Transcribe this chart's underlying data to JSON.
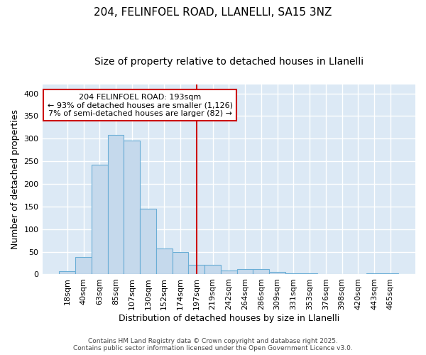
{
  "title1": "204, FELINFOEL ROAD, LLANELLI, SA15 3NZ",
  "title2": "Size of property relative to detached houses in Llanelli",
  "xlabel": "Distribution of detached houses by size in Llanelli",
  "ylabel": "Number of detached properties",
  "bar_labels": [
    "18sqm",
    "40sqm",
    "63sqm",
    "85sqm",
    "107sqm",
    "130sqm",
    "152sqm",
    "174sqm",
    "197sqm",
    "219sqm",
    "242sqm",
    "264sqm",
    "286sqm",
    "309sqm",
    "331sqm",
    "353sqm",
    "376sqm",
    "398sqm",
    "420sqm",
    "443sqm",
    "465sqm"
  ],
  "bar_values": [
    7,
    38,
    243,
    308,
    296,
    145,
    57,
    50,
    21,
    21,
    9,
    12,
    12,
    5,
    3,
    3,
    1,
    0,
    1,
    3,
    3
  ],
  "bar_color": "#c5d9ec",
  "bar_edge_color": "#6aaed6",
  "vline_x_index": 8,
  "vline_color": "#cc0000",
  "annotation_text": "204 FELINFOEL ROAD: 193sqm\n← 93% of detached houses are smaller (1,126)\n7% of semi-detached houses are larger (82) →",
  "annotation_box_facecolor": "#ffffff",
  "annotation_box_edgecolor": "#cc0000",
  "plot_bg_color": "#dce9f5",
  "fig_bg_color": "#ffffff",
  "grid_color": "#ffffff",
  "ylim": [
    0,
    420
  ],
  "yticks": [
    0,
    50,
    100,
    150,
    200,
    250,
    300,
    350,
    400
  ],
  "title1_fontsize": 11,
  "title2_fontsize": 10,
  "axis_label_fontsize": 9,
  "tick_fontsize": 8,
  "annotation_fontsize": 8,
  "footer_fontsize": 6.5,
  "footer_text": "Contains HM Land Registry data © Crown copyright and database right 2025.\nContains public sector information licensed under the Open Government Licence v3.0."
}
